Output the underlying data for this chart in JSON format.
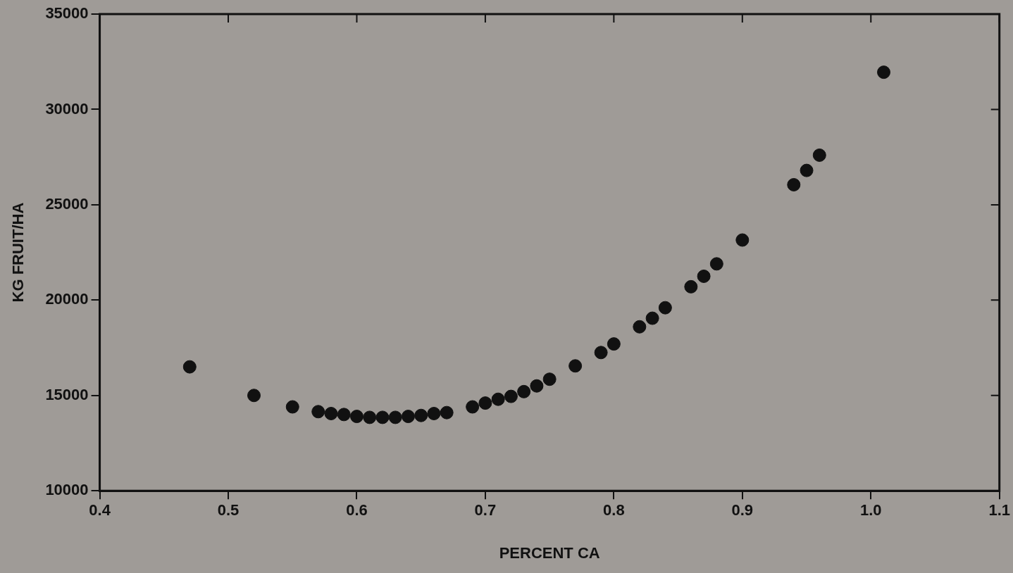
{
  "chart_data": {
    "type": "scatter",
    "xlabel": "PERCENT CA",
    "ylabel": "KG FRUIT/HA",
    "xlim": [
      0.4,
      1.1
    ],
    "xticks": [
      0.4,
      0.5,
      0.6,
      0.7,
      0.8,
      0.9,
      {
        "value": 1.0,
        "label": "1.0"
      },
      1.1
    ],
    "ylim": [
      10000,
      35000
    ],
    "yticks": [
      10000,
      15000,
      20000,
      25000,
      30000,
      35000
    ],
    "grid": false,
    "legend": false,
    "marker": "circle",
    "series": [
      {
        "color": "#111111",
        "x": [
          0.47,
          0.52,
          0.55,
          0.57,
          0.58,
          0.59,
          0.6,
          0.61,
          0.62,
          0.63,
          0.64,
          0.65,
          0.66,
          0.67,
          0.69,
          0.7,
          0.71,
          0.72,
          0.73,
          0.74,
          0.75,
          0.77,
          0.79,
          0.8,
          0.82,
          0.83,
          0.84,
          0.86,
          0.87,
          0.88,
          0.9,
          0.94,
          0.95,
          0.96,
          1.01
        ],
        "values": [
          16500,
          15000,
          14400,
          14150,
          14050,
          14000,
          13900,
          13850,
          13850,
          13850,
          13900,
          13950,
          14050,
          14100,
          14400,
          14600,
          14800,
          14950,
          15200,
          15500,
          15850,
          16550,
          17250,
          17700,
          18600,
          19050,
          19600,
          20700,
          21250,
          21900,
          23150,
          26050,
          26800,
          27600,
          31950
        ]
      }
    ]
  }
}
